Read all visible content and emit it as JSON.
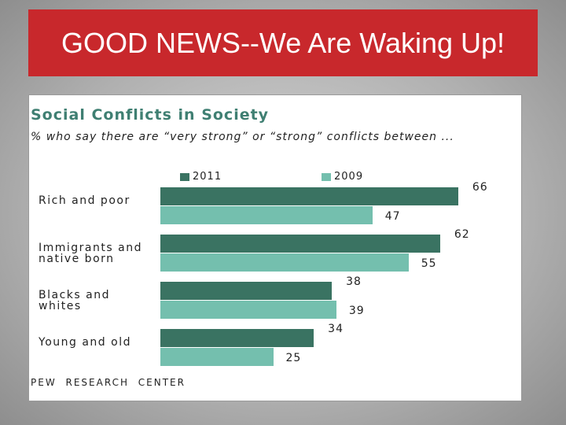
{
  "slide_title": "GOOD NEWS--We Are Waking Up!",
  "chart_data": {
    "type": "bar",
    "orientation": "horizontal",
    "title": "Social Conflicts in Society",
    "subtitle": "% who say there are “very strong” or “strong” conflicts between ...",
    "categories": [
      "Rich and poor",
      "Immigrants and native born",
      "Blacks and whites",
      "Young and old"
    ],
    "series": [
      {
        "name": "2011",
        "color": "#3a7362",
        "values": [
          66,
          62,
          38,
          34
        ]
      },
      {
        "name": "2009",
        "color": "#74bfae",
        "values": [
          47,
          55,
          39,
          25
        ]
      }
    ],
    "source": "PEW RESEARCH CENTER"
  }
}
